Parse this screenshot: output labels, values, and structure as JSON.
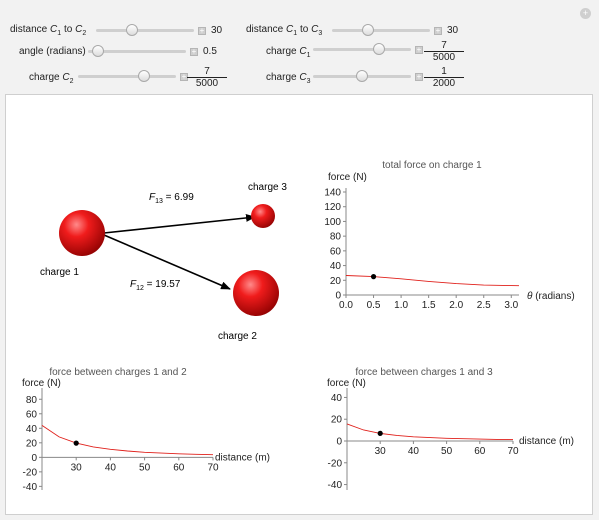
{
  "controls": {
    "dist12": {
      "label_pre": "distance ",
      "c_a": "C",
      "sub_a": "1",
      "mid": " to ",
      "c_b": "C",
      "sub_b": "2",
      "value": "30",
      "fraction": 0.35
    },
    "dist13": {
      "label_pre": "distance ",
      "c_a": "C",
      "sub_a": "1",
      "mid": " to ",
      "c_b": "C",
      "sub_b": "3",
      "value": "30",
      "fraction": 0.35
    },
    "angle": {
      "label": "angle (radians)",
      "value": "0.5",
      "fraction": 0.05
    },
    "chargeC1": {
      "label_pre": "charge ",
      "c": "C",
      "sub": "1",
      "num": "7",
      "den": "5000",
      "fraction": 0.7
    },
    "chargeC2": {
      "label_pre": "charge ",
      "c": "C",
      "sub": "2",
      "num": "7",
      "den": "5000",
      "fraction": 0.7
    },
    "chargeC3": {
      "label_pre": "charge ",
      "c": "C",
      "sub": "3",
      "num": "1",
      "den": "2000",
      "fraction": 0.5
    }
  },
  "diagram": {
    "charge1_label": "charge 1",
    "charge2_label": "charge 2",
    "charge3_label": "charge 3",
    "f13_label": "F",
    "f13_sub": "13",
    "f13_value": " = 6.99",
    "f12_label": "F",
    "f12_sub": "12",
    "f12_value": " = 19.57"
  },
  "chart_data": [
    {
      "type": "line",
      "title": "total force on charge 1",
      "ylabel": "force (N)",
      "xlabel": "θ (radians)",
      "xlim": [
        0,
        3.14
      ],
      "ylim": [
        0,
        140
      ],
      "x_ticks": [
        "0.0",
        "0.5",
        "1.0",
        "1.5",
        "2.0",
        "2.5",
        "3.0"
      ],
      "y_ticks": [
        "0",
        "20",
        "40",
        "60",
        "80",
        "100",
        "120",
        "140"
      ],
      "x": [
        0.0,
        0.5,
        1.0,
        1.5,
        2.0,
        2.5,
        3.0,
        3.14
      ],
      "y": [
        26.5,
        25.0,
        22.0,
        18.5,
        15.5,
        13.5,
        12.8,
        12.6
      ],
      "point": {
        "x": 0.5,
        "y": 25.0
      },
      "color": "#e0201b"
    },
    {
      "type": "line",
      "title": "force between charges 1 and 2",
      "ylabel": "force (N)",
      "xlabel": "distance (m)",
      "xlim": [
        20,
        70
      ],
      "ylim": [
        -45,
        90
      ],
      "x_ticks": [
        "30",
        "40",
        "50",
        "60",
        "70"
      ],
      "y_ticks": [
        "-40",
        "-20",
        "0",
        "20",
        "40",
        "60",
        "80"
      ],
      "x": [
        20,
        25,
        30,
        35,
        40,
        45,
        50,
        55,
        60,
        65,
        70
      ],
      "y": [
        44.0,
        28.2,
        19.57,
        14.4,
        11.0,
        8.7,
        7.0,
        5.8,
        4.9,
        4.2,
        3.6
      ],
      "point": {
        "x": 30,
        "y": 19.57
      },
      "color": "#e0201b"
    },
    {
      "type": "line",
      "title": "force between charges 1 and 3",
      "ylabel": "force (N)",
      "xlabel": "distance (m)",
      "xlim": [
        20,
        70
      ],
      "ylim": [
        -45,
        45
      ],
      "x_ticks": [
        "30",
        "40",
        "50",
        "60",
        "70"
      ],
      "y_ticks": [
        "-40",
        "-20",
        "0",
        "20",
        "40"
      ],
      "x": [
        20,
        25,
        30,
        35,
        40,
        45,
        50,
        55,
        60,
        65,
        70
      ],
      "y": [
        15.7,
        10.1,
        6.99,
        5.1,
        3.9,
        3.1,
        2.5,
        2.1,
        1.75,
        1.5,
        1.3
      ],
      "point": {
        "x": 30,
        "y": 6.99
      },
      "color": "#e0201b"
    }
  ]
}
